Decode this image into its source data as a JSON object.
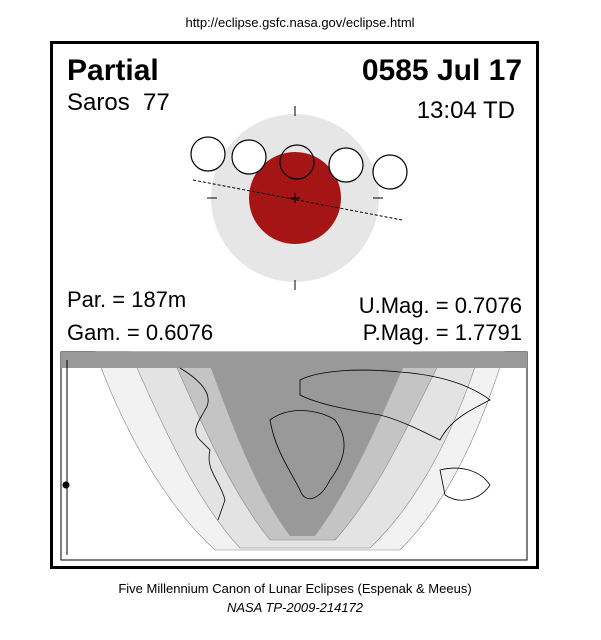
{
  "header": {
    "url": "http://eclipse.gsfc.nasa.gov/eclipse.html"
  },
  "eclipse": {
    "type": "Partial",
    "date": "0585 Jul 17",
    "saros": "Saros  77",
    "time": "13:04 TD"
  },
  "parameters": {
    "par": "Par. = 187m",
    "gam": "Gam. = 0.6076",
    "umag": "U.Mag. = 0.7076",
    "pmag": "P.Mag. = 1.7791"
  },
  "footer": {
    "canon": "Five Millennium Canon of Lunar Eclipses (Espenak & Meeus)",
    "reference": "NASA TP-2009-214172"
  }
}
